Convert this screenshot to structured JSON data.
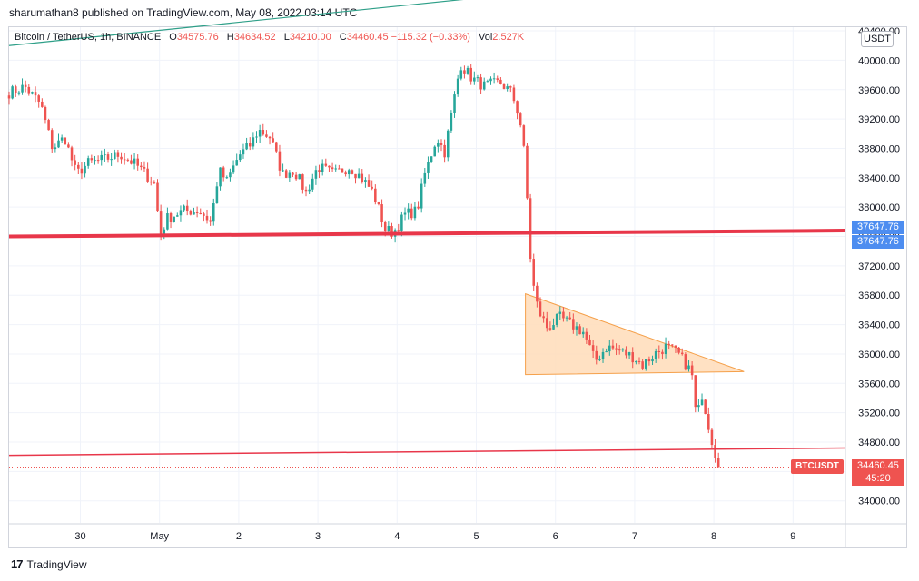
{
  "header": {
    "publish_text": "sharumathan8 published on TradingView.com, May 08, 2022 03:14 UTC"
  },
  "legend": {
    "symbol": "Bitcoin / TetherUS, 1h, BINANCE",
    "open_label": "O",
    "open": "34575.76",
    "high_label": "H",
    "high": "34634.52",
    "low_label": "L",
    "low": "34210.00",
    "close_label": "C",
    "close": "34460.45",
    "change": "−115.32 (−0.33%)",
    "vol_label": "Vol",
    "vol": "2.527K"
  },
  "currency_label": "USDT",
  "badges": {
    "level_price_1": "37647.76",
    "level_price_2": "37647.76",
    "symbol": "BTCUSDT",
    "last_price": "34460.45",
    "countdown": "45:20"
  },
  "colors": {
    "up": "#26a69a",
    "down": "#ef5350",
    "level": "#e8374a",
    "triangle_fill": "#ffdcb9",
    "triangle_stroke": "#f5a04a",
    "trend": "#2e9f88",
    "badge_blue": "#4d8df0"
  },
  "brand": {
    "logo": "17",
    "name": "TradingView"
  },
  "chart_data": {
    "type": "candlestick",
    "title": "Bitcoin / TetherUS, 1h, BINANCE",
    "y_range": [
      33700,
      40450
    ],
    "y_ticks": [
      "40400.00",
      "40000.00",
      "39600.00",
      "39200.00",
      "38800.00",
      "38400.00",
      "38000.00",
      "37600.00",
      "37200.00",
      "36800.00",
      "36400.00",
      "36000.00",
      "35600.00",
      "35200.00",
      "34800.00",
      "34400.00",
      "34000.00"
    ],
    "y_tick_values": [
      40400,
      40000,
      39600,
      39200,
      38800,
      38400,
      38000,
      37600,
      37200,
      36800,
      36400,
      36000,
      35600,
      35200,
      34800,
      34400,
      34000
    ],
    "x_ticks": [
      "30",
      "May",
      "2",
      "3",
      "4",
      "5",
      "6",
      "7",
      "8",
      "9"
    ],
    "x_tick_days": [
      0,
      1,
      2,
      3,
      4,
      5,
      6,
      7,
      8,
      9
    ],
    "x_range_days": [
      -0.9,
      9.65
    ],
    "anchors": [
      [
        -0.9,
        39560
      ],
      [
        -0.7,
        39640
      ],
      [
        -0.5,
        39400
      ],
      [
        -0.35,
        38800
      ],
      [
        -0.2,
        38950
      ],
      [
        -0.05,
        38450
      ],
      [
        0.1,
        38600
      ],
      [
        0.3,
        38650
      ],
      [
        0.5,
        38720
      ],
      [
        0.7,
        38580
      ],
      [
        0.85,
        38420
      ],
      [
        0.95,
        38300
      ],
      [
        1.0,
        37600
      ],
      [
        1.1,
        37850
      ],
      [
        1.3,
        37950
      ],
      [
        1.5,
        37950
      ],
      [
        1.65,
        37800
      ],
      [
        1.75,
        38500
      ],
      [
        1.85,
        38350
      ],
      [
        2.0,
        38700
      ],
      [
        2.15,
        38850
      ],
      [
        2.25,
        39050
      ],
      [
        2.4,
        38950
      ],
      [
        2.55,
        38450
      ],
      [
        2.7,
        38500
      ],
      [
        2.85,
        38200
      ],
      [
        3.0,
        38550
      ],
      [
        3.2,
        38450
      ],
      [
        3.4,
        38550
      ],
      [
        3.55,
        38400
      ],
      [
        3.7,
        38200
      ],
      [
        3.85,
        37700
      ],
      [
        3.95,
        37650
      ],
      [
        4.1,
        37900
      ],
      [
        4.25,
        37950
      ],
      [
        4.35,
        38450
      ],
      [
        4.5,
        38950
      ],
      [
        4.6,
        38750
      ],
      [
        4.7,
        39350
      ],
      [
        4.8,
        39950
      ],
      [
        4.95,
        39750
      ],
      [
        5.1,
        39650
      ],
      [
        5.3,
        39700
      ],
      [
        5.45,
        39550
      ],
      [
        5.55,
        39200
      ],
      [
        5.62,
        38600
      ],
      [
        5.66,
        37700
      ],
      [
        5.7,
        37050
      ],
      [
        5.78,
        36600
      ],
      [
        5.9,
        36350
      ],
      [
        6.05,
        36500
      ],
      [
        6.2,
        36400
      ],
      [
        6.35,
        36300
      ],
      [
        6.5,
        35900
      ],
      [
        6.65,
        36100
      ],
      [
        6.8,
        36050
      ],
      [
        7.0,
        35950
      ],
      [
        7.1,
        35850
      ],
      [
        7.25,
        36000
      ],
      [
        7.4,
        36100
      ],
      [
        7.55,
        36000
      ],
      [
        7.65,
        35850
      ],
      [
        7.72,
        35750
      ],
      [
        7.78,
        35100
      ],
      [
        7.85,
        35450
      ],
      [
        7.92,
        35100
      ],
      [
        8.0,
        34700
      ],
      [
        8.08,
        34460
      ]
    ],
    "last_price": 34460.45,
    "horizontal_level": {
      "from": [
        -0.9,
        37600
      ],
      "to": [
        9.65,
        37680
      ]
    },
    "lower_line": {
      "from": [
        -0.9,
        34620
      ],
      "to": [
        9.65,
        34720
      ]
    },
    "teal_trendline": {
      "from": [
        -0.9,
        40200
      ],
      "to": [
        5.95,
        40950
      ]
    },
    "descending_triangle": [
      [
        5.62,
        36820
      ],
      [
        5.62,
        35720
      ],
      [
        8.38,
        35760
      ]
    ]
  }
}
